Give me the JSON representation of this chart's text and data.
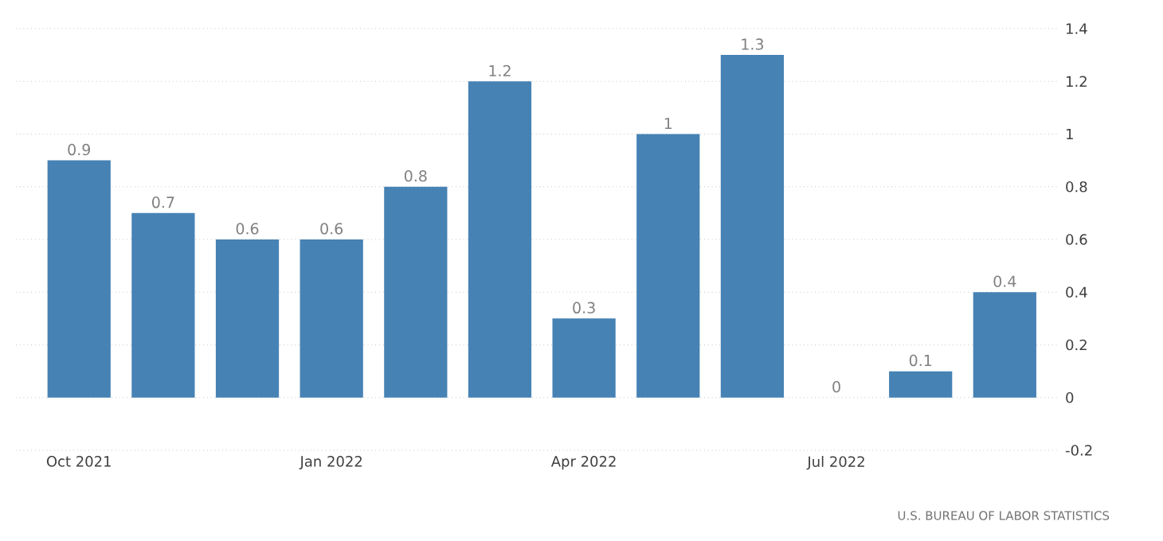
{
  "chart_data": {
    "type": "bar",
    "categories": [
      "Oct 2021",
      null,
      null,
      "Jan 2022",
      null,
      null,
      "Apr 2022",
      null,
      null,
      "Jul 2022",
      null,
      null
    ],
    "values": [
      0.9,
      0.7,
      0.6,
      0.6,
      0.8,
      1.2,
      0.3,
      1,
      1.3,
      0,
      0.1,
      0.4
    ],
    "color": "#4682b4",
    "ylim": [
      -0.2,
      1.4
    ],
    "yticks": [
      -0.2,
      0,
      0.2,
      0.4,
      0.6,
      0.8,
      1,
      1.2,
      1.4
    ],
    "grid": "y",
    "data_labels": true,
    "annotations": [
      "U.S. BUREAU OF LABOR STATISTICS"
    ]
  }
}
